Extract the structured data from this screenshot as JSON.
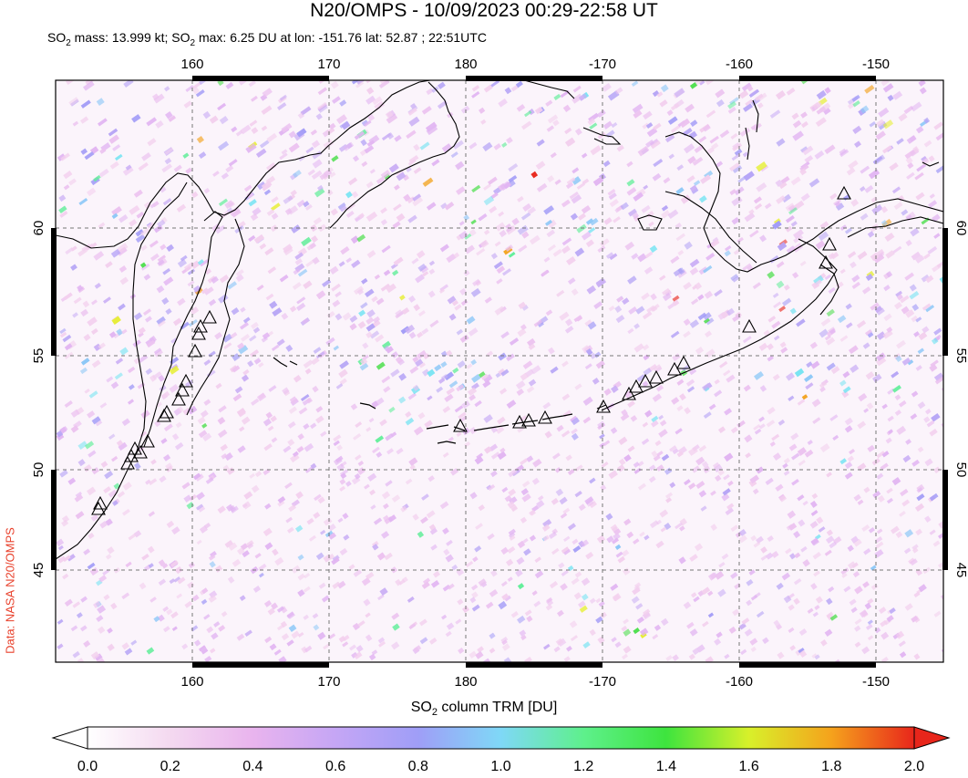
{
  "header": {
    "title": "N20/OMPS - 10/09/2023 00:29-22:58 UT",
    "so2_mass_label": "SO",
    "so2_mass_value": " mass: 13.999 kt; SO",
    "so2_max_value": " max: 6.25 DU at lon: -151.76 lat: 52.87 ; 22:51UTC",
    "sub2": "2"
  },
  "credit": "Data: NASA N20/OMPS",
  "map": {
    "lon_ticks": [
      "160",
      "170",
      "180",
      "-170",
      "-160",
      "-150"
    ],
    "lat_ticks": [
      "60",
      "55",
      "50",
      "45"
    ],
    "lon_range": [
      150,
      215
    ],
    "lat_range": [
      40,
      66
    ],
    "volcano_icon": "triangle-icon"
  },
  "colorbar": {
    "title_prefix": "SO",
    "title_sub": "2",
    "title_suffix": " column TRM [DU]",
    "tick_labels": [
      "0.0",
      "0.2",
      "0.4",
      "0.6",
      "0.8",
      "1.0",
      "1.2",
      "1.4",
      "1.6",
      "1.8",
      "2.0"
    ],
    "colors": [
      "#ffffff",
      "#f4d9f0",
      "#e9b4ee",
      "#c5a6f5",
      "#9f9ef7",
      "#7fd8f7",
      "#5ef08c",
      "#3ee43e",
      "#d8f02a",
      "#f5a21c",
      "#e8261b"
    ]
  }
}
